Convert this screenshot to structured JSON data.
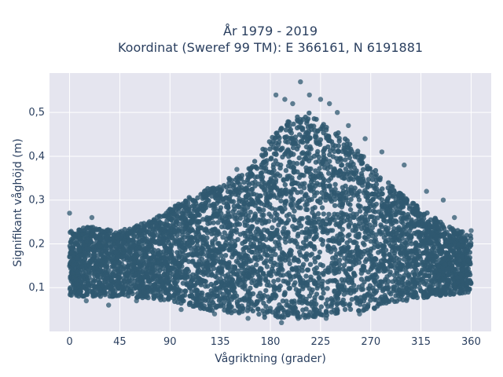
{
  "chart_data": {
    "type": "scatter",
    "title": [
      "År 1979 - 2019",
      "Koordinat (Sweref 99 TM): E 366161, N 6191881"
    ],
    "xlabel": "Vågriktning (grader)",
    "ylabel": "Signifikant våghöjd (m)",
    "xlim": [
      -18,
      378
    ],
    "ylim": [
      0.0,
      0.59
    ],
    "xticks": [
      0,
      45,
      90,
      135,
      180,
      225,
      270,
      315,
      360
    ],
    "yticks": [
      0.1,
      0.2,
      0.3,
      0.4,
      0.5
    ],
    "ytick_labels": [
      "0,1",
      "0,2",
      "0,3",
      "0,4",
      "0,5"
    ],
    "grid": true,
    "marker_color": "#2f5870",
    "series": [
      {
        "envelope_upper": [
          [
            0,
            0.23
          ],
          [
            20,
            0.24
          ],
          [
            45,
            0.23
          ],
          [
            70,
            0.25
          ],
          [
            90,
            0.28
          ],
          [
            110,
            0.31
          ],
          [
            135,
            0.34
          ],
          [
            160,
            0.37
          ],
          [
            180,
            0.44
          ],
          [
            200,
            0.49
          ],
          [
            215,
            0.5
          ],
          [
            230,
            0.47
          ],
          [
            250,
            0.44
          ],
          [
            270,
            0.38
          ],
          [
            290,
            0.33
          ],
          [
            315,
            0.28
          ],
          [
            340,
            0.24
          ],
          [
            360,
            0.22
          ]
        ],
        "envelope_lower": [
          [
            0,
            0.08
          ],
          [
            45,
            0.08
          ],
          [
            90,
            0.07
          ],
          [
            120,
            0.05
          ],
          [
            150,
            0.04
          ],
          [
            180,
            0.03
          ],
          [
            210,
            0.03
          ],
          [
            240,
            0.04
          ],
          [
            270,
            0.05
          ],
          [
            300,
            0.07
          ],
          [
            330,
            0.08
          ],
          [
            360,
            0.09
          ]
        ],
        "outliers": [
          [
            0,
            0.27
          ],
          [
            20,
            0.26
          ],
          [
            150,
            0.37
          ],
          [
            160,
            0.34
          ],
          [
            185,
            0.54
          ],
          [
            193,
            0.53
          ],
          [
            200,
            0.52
          ],
          [
            207,
            0.57
          ],
          [
            215,
            0.54
          ],
          [
            225,
            0.53
          ],
          [
            233,
            0.52
          ],
          [
            240,
            0.5
          ],
          [
            250,
            0.47
          ],
          [
            265,
            0.44
          ],
          [
            280,
            0.41
          ],
          [
            300,
            0.38
          ],
          [
            320,
            0.32
          ],
          [
            335,
            0.3
          ],
          [
            345,
            0.26
          ],
          [
            360,
            0.23
          ],
          [
            15,
            0.07
          ],
          [
            35,
            0.06
          ],
          [
            60,
            0.07
          ],
          [
            100,
            0.05
          ],
          [
            130,
            0.04
          ],
          [
            160,
            0.03
          ],
          [
            190,
            0.02
          ],
          [
            205,
            0.03
          ],
          [
            230,
            0.03
          ],
          [
            260,
            0.04
          ]
        ]
      }
    ]
  }
}
